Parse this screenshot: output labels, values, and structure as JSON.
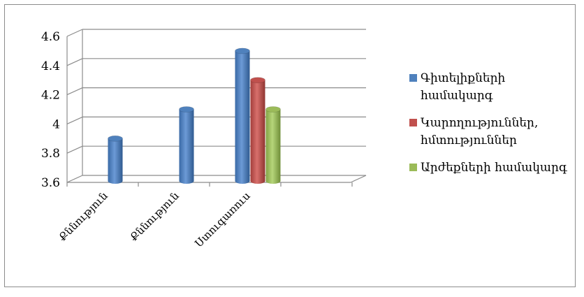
{
  "chart_data": {
    "type": "bar",
    "categories": [
      "Քննություն",
      "Քննություն",
      "Ստուգառուս"
    ],
    "series": [
      {
        "name": "Գիտելիքների համակարգ",
        "color": "#4f81bd",
        "values": [
          3.9,
          4.1,
          4.5
        ]
      },
      {
        "name": "Կարողություններ, հմտություններ",
        "color": "#c0504d",
        "values": [
          null,
          null,
          4.3
        ]
      },
      {
        "name": "Արժեքների համակարգ",
        "color": "#9bbb59",
        "values": [
          null,
          null,
          4.1
        ]
      }
    ],
    "y_ticks": [
      "3.6",
      "3.8",
      "4",
      "4.2",
      "4.4",
      "4.6"
    ],
    "ylim": [
      3.6,
      4.6
    ],
    "grid": true,
    "legend_position": "right",
    "style": "3d-cylinder"
  }
}
